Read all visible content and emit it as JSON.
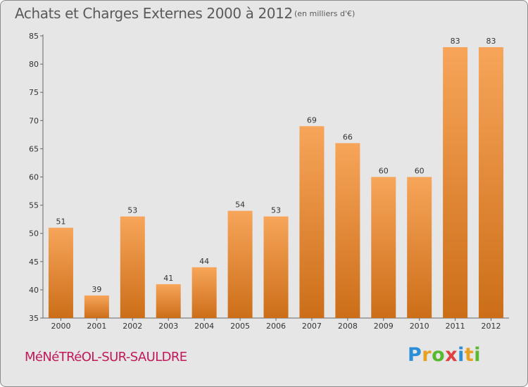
{
  "chart_data": {
    "type": "bar",
    "title": "Achats et Charges Externes 2000 à 2012",
    "subtitle": "(en milliers d'€)",
    "categories": [
      "2000",
      "2001",
      "2002",
      "2003",
      "2004",
      "2005",
      "2006",
      "2007",
      "2008",
      "2009",
      "2010",
      "2011",
      "2012"
    ],
    "values": [
      51,
      39,
      53,
      41,
      44,
      54,
      53,
      69,
      66,
      60,
      60,
      83,
      83
    ],
    "ylim": [
      35,
      85
    ],
    "yticks": [
      35,
      40,
      45,
      50,
      55,
      60,
      65,
      70,
      75,
      80,
      85
    ],
    "xlabel": "",
    "ylabel": "",
    "grid": false,
    "colors": {
      "bar_light": "#f7a55a",
      "bar_dark": "#cc6e18",
      "background": "#e6e6e6",
      "axis": "#666666"
    }
  },
  "footer": {
    "commune": "MéNéTRéOL-SUR-SAULDRE",
    "logo_letters": [
      "P",
      "r",
      "o",
      "x",
      "i",
      "t",
      "i"
    ],
    "logo_colors": [
      "#2a8fd8",
      "#e8a020",
      "#58b830",
      "#e04040",
      "#2a8fd8",
      "#e8a020",
      "#58b830"
    ]
  }
}
